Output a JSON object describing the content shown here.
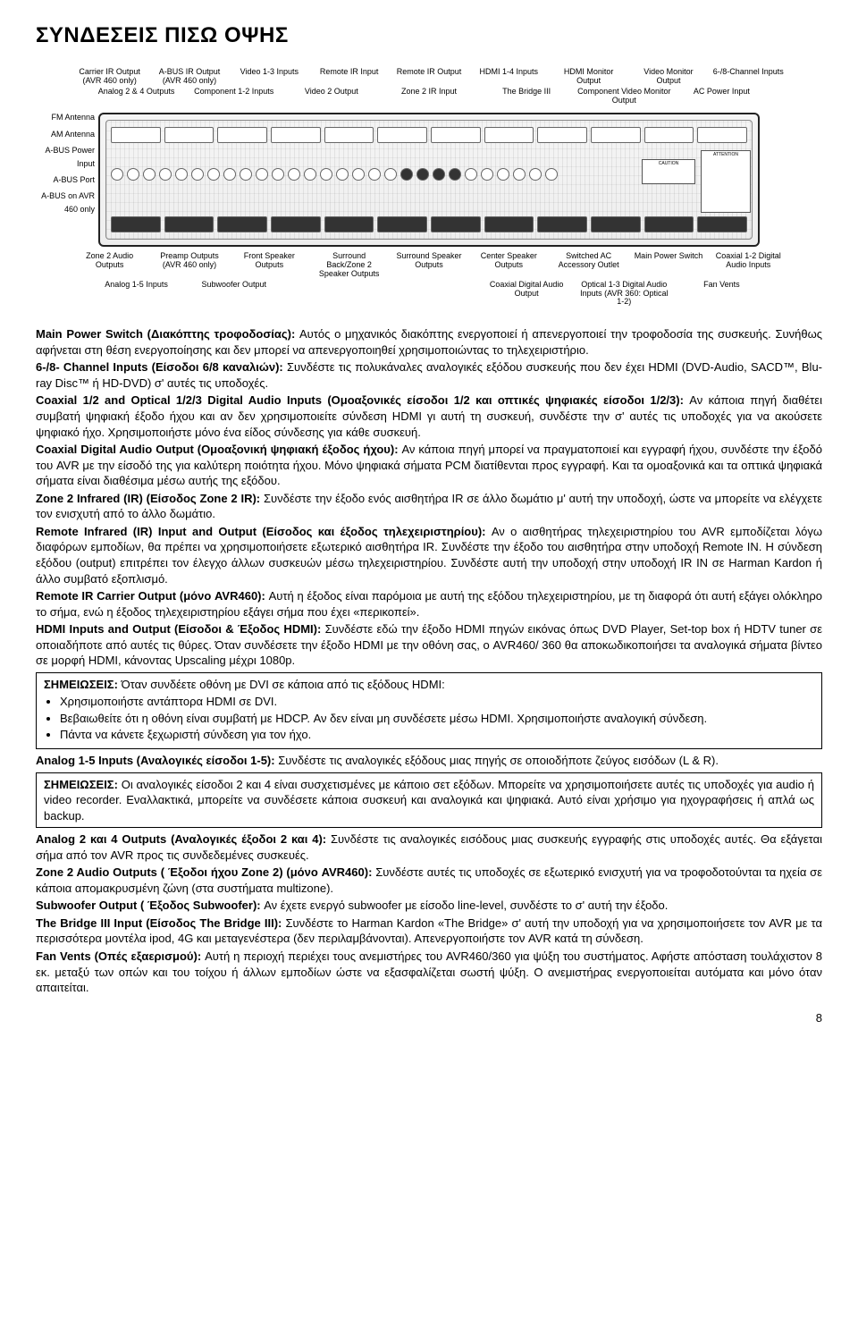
{
  "page": {
    "title": "ΣΥΝΔΕΣΕΙΣ ΠΙΣΩ ΟΨΗΣ",
    "page_number": "8"
  },
  "diagram": {
    "top_row1": [
      "Carrier IR Output (AVR 460 only)",
      "A-BUS IR Output (AVR 460 only)",
      "Video 1-3 Inputs",
      "Remote IR Input",
      "Remote IR Output",
      "HDMI 1-4 Inputs",
      "HDMI Monitor Output",
      "Video Monitor Output",
      "6-/8-Channel Inputs"
    ],
    "top_row2": [
      "Analog 2 & 4 Outputs",
      "Component 1-2 Inputs",
      "Video 2 Output",
      "Zone 2 IR Input",
      "The Bridge III",
      "Component Video Monitor Output",
      "AC Power Input"
    ],
    "left": [
      "FM Antenna",
      "AM Antenna",
      "A-BUS Power Input",
      "A-BUS Port",
      "A-BUS on AVR 460 only"
    ],
    "bottom_row1": [
      "Zone 2 Audio Outputs",
      "Preamp Outputs (AVR 460 only)",
      "Front Speaker Outputs",
      "Surround Back/Zone 2 Speaker Outputs",
      "Surround Speaker Outputs",
      "Center Speaker Outputs",
      "Switched AC Accessory Outlet",
      "Main Power Switch",
      "Coaxial 1-2 Digital Audio Inputs"
    ],
    "bottom_row2": [
      "Analog 1-5 Inputs",
      "Subwoofer Output",
      "",
      "",
      "Coaxial Digital Audio Output",
      "Optical 1-3 Digital Audio Inputs (AVR 360: Optical 1-2)",
      "Fan Vents"
    ],
    "attention_label": "ATTENTION",
    "caution_label": "CAUTION"
  },
  "paragraphs": {
    "p1_head": "Main Power Switch (Διακόπτης τροφοδοσίας):",
    "p1_body": " Αυτός ο μηχανικός διακόπτης ενεργοποιεί ή απενεργοποιεί την τροφοδοσία της συσκευής. Συνήθως αφήνεται στη θέση ενεργοποίησης και δεν μπορεί να απενεργοποιηθεί χρησιμοποιώντας το τηλεχειριστήριο.",
    "p2_head": "6-/8- Channel Inputs (Είσοδοι 6/8 καναλιών):",
    "p2_body": " Συνδέστε τις πολυκάναλες αναλογικές εξόδου συσκευής που δεν έχει HDMI (DVD-Audio, SACD™, Blu-ray Disc™ ή HD-DVD) σ' αυτές τις υποδοχές.",
    "p3_head": "Coaxial 1/2 and Optical 1/2/3 Digital Audio Inputs (Ομοαξονικές είσοδοι 1/2 και οπτικές ψηφιακές είσοδοι 1/2/3):",
    "p3_body": " Αν κάποια πηγή διαθέτει συμβατή ψηφιακή έξοδο ήχου και αν δεν χρησιμοποιείτε σύνδεση HDMI γι αυτή τη συσκευή, συνδέστε την σ' αυτές τις υποδοχές για να ακούσετε ψηφιακό ήχο. Χρησιμοποιήστε μόνο ένα είδος σύνδεσης για κάθε συσκευή.",
    "p4_head": "Coaxial Digital Audio Output (Ομοαξονική ψηφιακή έξοδος ήχου):",
    "p4_body": " Αν κάποια πηγή μπορεί να πραγματοποιεί και εγγραφή ήχου, συνδέστε την έξοδό του AVR με την είσοδό της για καλύτερη ποιότητα ήχου. Μόνο ψηφιακά σήματα PCM διατίθενται προς εγγραφή. Και τα ομοαξονικά και τα οπτικά ψηφιακά σήματα είναι διαθέσιμα μέσω αυτής της εξόδου.",
    "p5_head": "Zone 2 Infrared (IR) (Είσοδος Zone 2 IR):",
    "p5_body": " Συνδέστε την έξοδο ενός αισθητήρα IR σε άλλο δωμάτιο μ' αυτή την υποδοχή, ώστε να μπορείτε να ελέγχετε τον ενισχυτή από το άλλο δωμάτιο.",
    "p6_head": "Remote Infrared (IR) Input and Output (Είσοδος και έξοδος τηλεχειριστηρίου):",
    "p6_body": " Αν ο αισθητήρας τηλεχειριστηρίου του AVR εμποδίζεται λόγω διαφόρων εμποδίων, θα πρέπει να χρησιμοποιήσετε εξωτερικό αισθητήρα IR. Συνδέστε την έξοδο του αισθητήρα στην υποδοχή Remote IN. Η σύνδεση εξόδου (output) επιτρέπει τον έλεγχο άλλων συσκευών μέσω τηλεχειριστηρίου. Συνδέστε αυτή την υποδοχή στην υποδοχή IR IN σε Harman Kardon ή άλλο συμβατό εξοπλισμό.",
    "p7_head": "Remote IR Carrier Output (μόνο AVR460):",
    "p7_body": " Αυτή η έξοδος είναι παρόμοια με αυτή της εξόδου τηλεχειριστηρίου, με τη διαφορά ότι αυτή εξάγει ολόκληρο το σήμα, ενώ η έξοδος τηλεχειριστηρίου εξάγει σήμα που έχει «περικοπεί».",
    "p8_head": "HDMI Inputs and Output (Είσοδοι & Έξοδος HDMI):",
    "p8_body": " Συνδέστε εδώ την έξοδο HDMI πηγών εικόνας όπως DVD Player, Set-top box ή HDTV tuner σε οποιαδήποτε από αυτές τις θύρες. Όταν συνδέσετε την έξοδο HDMI με την οθόνη σας, ο AVR460/ 360 θα αποκωδικοποιήσει τα αναλογικά σήματα βίντεο σε μορφή HDMI, κάνοντας Upscaling μέχρι 1080p.",
    "box1_head": "ΣΗΜΕΙΩΣΕΙΣ:",
    "box1_line1": " Όταν συνδέετε οθόνη με DVI σε κάποια από τις εξόδους HDMI:",
    "box1_b1": "Χρησιμοποιήστε αντάπτορα HDMI σε DVI.",
    "box1_b2": "Βεβαιωθείτε ότι η οθόνη είναι συμβατή με HDCP. Αν δεν είναι μη συνδέσετε μέσω HDMI. Χρησιμοποιήστε αναλογική σύνδεση.",
    "box1_b3": "Πάντα να κάνετε ξεχωριστή σύνδεση για τον ήχο.",
    "p9_head": "Analog 1-5 Inputs (Αναλογικές είσοδοι 1-5):",
    "p9_body": " Συνδέστε τις αναλογικές εξόδους μιας πηγής σε οποιοδήποτε ζεύγος εισόδων (L & R).",
    "box2_head": "ΣΗΜΕΙΩΣΕΙΣ:",
    "box2_body": " Οι αναλογικές είσοδοι 2 και 4 είναι συσχετισμένες με κάποιο σετ εξόδων. Μπορείτε να χρησιμοποιήσετε αυτές τις υποδοχές για audio ή video recorder. Εναλλακτικά, μπορείτε να συνδέσετε κάποια συσκευή και αναλογικά και ψηφιακά. Αυτό είναι χρήσιμο για ηχογραφήσεις ή απλά ως backup.",
    "p10_head": "Analog 2 και 4 Outputs (Αναλογικές έξοδοι 2 και 4):",
    "p10_body": " Συνδέστε τις αναλογικές εισόδους μιας συσκευής εγγραφής στις υποδοχές αυτές. Θα εξάγεται σήμα από τον AVR προς τις συνδεδεμένες συσκευές.",
    "p11_head": "Zone 2 Audio Outputs ( Έξοδοι ήχου Zone 2) (μόνο AVR460):",
    "p11_body": " Συνδέστε αυτές τις υποδοχές σε εξωτερικό ενισχυτή για να τροφοδοτούνται τα ηχεία σε κάποια απομακρυσμένη ζώνη (στα συστήματα multizone).",
    "p12_head": "Subwoofer Output ( Έξοδος Subwoofer):",
    "p12_body": " Αν έχετε ενεργό subwoofer με είσοδο line-level, συνδέστε το σ' αυτή την έξοδο.",
    "p13_head": "The Bridge III Input (Είσοδος The Bridge III):",
    "p13_body": " Συνδέστε το Harman Kardon «The Bridge» σ' αυτή την υποδοχή για να χρησιμοποιήσετε τον AVR με τα περισσότερα μοντέλα ipod, 4G και μεταγενέστερα (δεν περιλαμβάνονται). Απενεργοποιήστε τον AVR κατά τη σύνδεση.",
    "p14_head": "Fan Vents (Οπές εξαερισμού):",
    "p14_body": " Αυτή η περιοχή περιέχει τους ανεμιστήρες του AVR460/360 για ψύξη του συστήματος. Αφήστε απόσταση τουλάχιστον 8 εκ. μεταξύ των οπών και του τοίχου ή άλλων εμποδίων ώστε να εξασφαλίζεται σωστή ψύξη. Ο ανεμιστήρας ενεργοποιείται αυτόματα και μόνο όταν απαιτείται."
  }
}
